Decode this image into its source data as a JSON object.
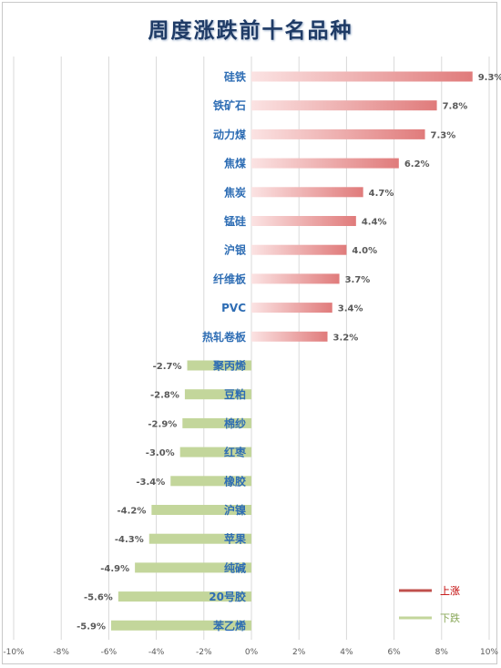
{
  "chart_data": {
    "type": "bar",
    "orientation": "horizontal",
    "title": "周度涨跌前十名品种",
    "categories": [
      "硅铁",
      "铁矿石",
      "动力煤",
      "焦煤",
      "焦炭",
      "锰硅",
      "沪银",
      "纤维板",
      "PVC",
      "热轧卷板",
      "聚丙烯",
      "豆粕",
      "棉纱",
      "红枣",
      "橡胶",
      "沪镍",
      "苹果",
      "纯碱",
      "20号胶",
      "苯乙烯"
    ],
    "values": [
      9.3,
      7.8,
      7.3,
      6.2,
      4.7,
      4.4,
      4.0,
      3.7,
      3.4,
      3.2,
      -2.7,
      -2.8,
      -2.9,
      -3.0,
      -3.4,
      -4.2,
      -4.3,
      -4.9,
      -5.6,
      -5.9
    ],
    "value_labels": [
      "9.3%",
      "7.8%",
      "7.3%",
      "6.2%",
      "4.7%",
      "4.4%",
      "4.0%",
      "3.7%",
      "3.4%",
      "3.2%",
      "-2.7%",
      "-2.8%",
      "-2.9%",
      "-3.0%",
      "-3.4%",
      "-4.2%",
      "-4.3%",
      "-4.9%",
      "-5.6%",
      "-5.9%"
    ],
    "xlim": [
      -10,
      10
    ],
    "x_ticks": [
      -10,
      -8,
      -6,
      -4,
      -2,
      0,
      2,
      4,
      6,
      8,
      10
    ],
    "x_tick_labels": [
      "-10%",
      "-8%",
      "-6%",
      "-4%",
      "-2%",
      "0%",
      "2%",
      "4%",
      "6%",
      "8%",
      "10%"
    ],
    "grid": "vertical",
    "legend_position": "bottom-right",
    "legend": [
      {
        "name": "上涨",
        "color": "#c0504d"
      },
      {
        "name": "下跌",
        "color": "#c3d69b"
      }
    ],
    "colors": {
      "up_start": "#fbe3e3",
      "up_end": "#e07b7b",
      "down": "#c3d69b",
      "category_text": "#2e6db4",
      "value_text": "#595959",
      "grid": "#d9d9d9",
      "title": "#1f3b66"
    }
  }
}
